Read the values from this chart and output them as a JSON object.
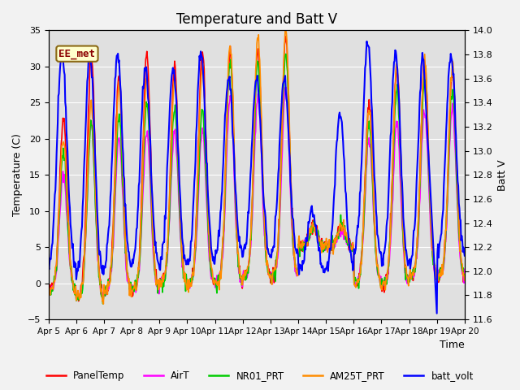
{
  "title": "Temperature and Batt V",
  "xlabel": "Time",
  "ylabel_left": "Temperature (C)",
  "ylabel_right": "Batt V",
  "ylim_left": [
    -5,
    35
  ],
  "ylim_right": [
    11.6,
    14.0
  ],
  "annotation_text": "EE_met",
  "annotation_color": "#8B0000",
  "annotation_bg": "#FFFFCC",
  "annotation_border": "#8B6914",
  "plot_bg_color": "#E0E0E0",
  "fig_bg_color": "#F2F2F2",
  "xtick_labels": [
    "Apr 5",
    "Apr 6",
    "Apr 7",
    "Apr 8",
    "Apr 9",
    "Apr 10",
    "Apr 11",
    "Apr 12",
    "Apr 13",
    "Apr 14",
    "Apr 15",
    "Apr 16",
    "Apr 17",
    "Apr 18",
    "Apr 19",
    "Apr 20"
  ],
  "series_colors": {
    "PanelTemp": "#FF0000",
    "AirT": "#FF00FF",
    "NR01_PRT": "#00CC00",
    "AM25T_PRT": "#FF8C00",
    "batt_volt": "#0000FF"
  },
  "series_linewidths": {
    "PanelTemp": 1.2,
    "AirT": 1.2,
    "NR01_PRT": 1.2,
    "AM25T_PRT": 1.2,
    "batt_volt": 1.5
  },
  "n_days": 15,
  "pts_per_day": 48,
  "title_fontsize": 12,
  "right_yticks": [
    11.6,
    11.8,
    12.0,
    12.2,
    12.4,
    12.6,
    12.8,
    13.0,
    13.2,
    13.4,
    13.6,
    13.8,
    14.0
  ],
  "left_yticks": [
    -5,
    0,
    5,
    10,
    15,
    20,
    25,
    30,
    35
  ]
}
